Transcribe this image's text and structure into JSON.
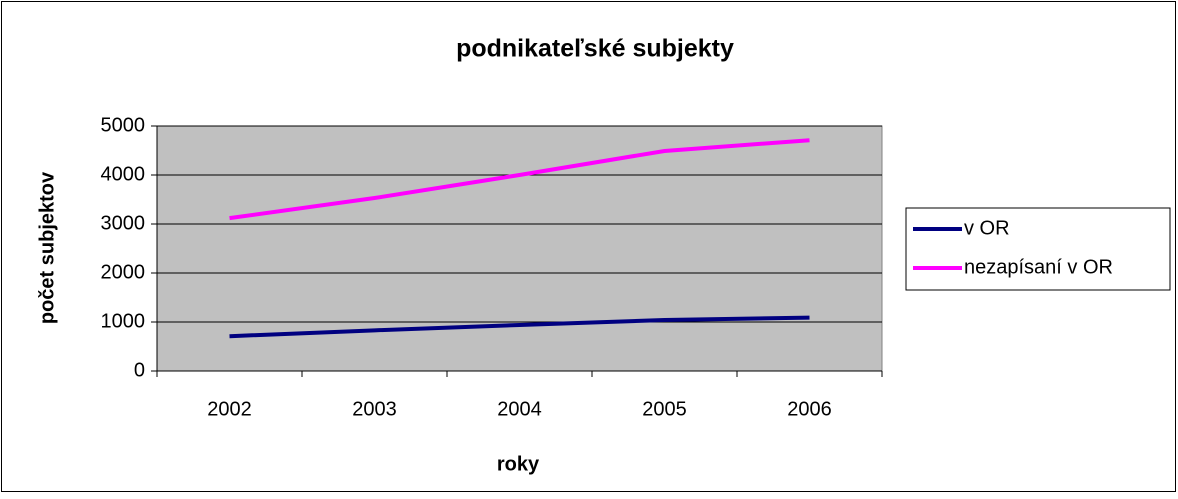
{
  "chart_data": {
    "type": "line",
    "title": "podnikateľské subjekty",
    "x_label": "roky",
    "y_label": "počet subjektov",
    "categories": [
      "2002",
      "2003",
      "2004",
      "2005",
      "2006"
    ],
    "series": [
      {
        "name": "v OR",
        "color": "#000080",
        "values": [
          710,
          830,
          940,
          1040,
          1090
        ]
      },
      {
        "name": "nezapísaní v OR",
        "color": "#ff00ff",
        "values": [
          3120,
          3530,
          4000,
          4490,
          4710
        ]
      }
    ],
    "ylim": [
      0,
      5000
    ],
    "yticks": [
      0,
      1000,
      2000,
      3000,
      4000,
      5000
    ],
    "grid": true,
    "legend": "right"
  }
}
